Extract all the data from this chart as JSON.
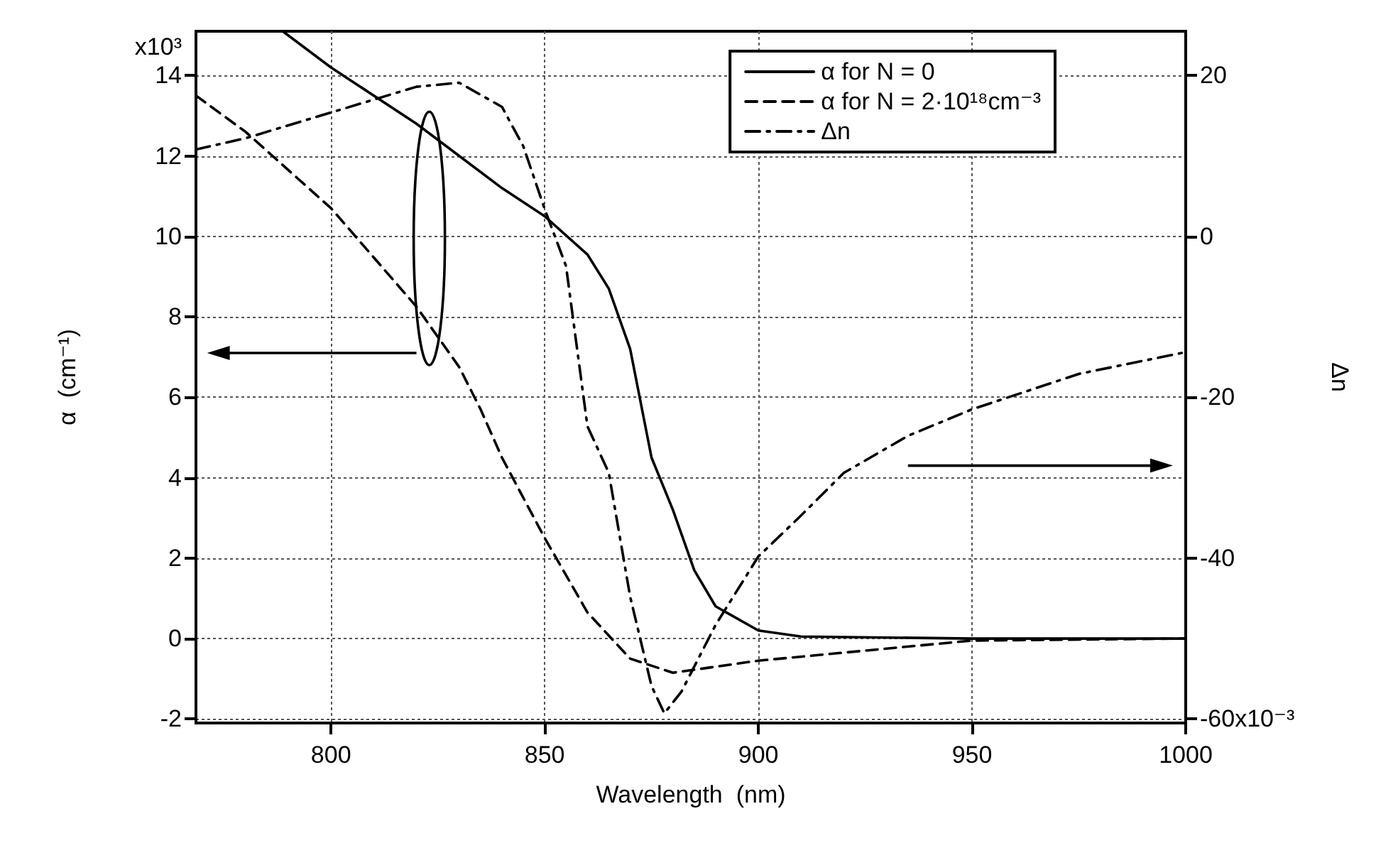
{
  "chart_data": {
    "type": "line",
    "xlabel": "Wavelength  (nm)",
    "ylabel": "α  (cm⁻¹)",
    "y2label": "Δn",
    "xlim": [
      768.4,
      1000
    ],
    "xticks": [
      800,
      850,
      900,
      950,
      1000
    ],
    "ylim": [
      -2.1,
      15.1
    ],
    "yticks": [
      -2,
      0,
      2,
      4,
      6,
      8,
      10,
      12,
      14
    ],
    "annotations": [
      "x10³",
      "x10⁻³"
    ],
    "y2lim": [
      -60.5,
      25.5
    ],
    "y2ticks": [
      -60,
      -40,
      -20,
      0,
      20
    ],
    "grid": true,
    "legend": "top right",
    "marker": "none",
    "series": [
      {
        "name": "α for N = 0",
        "color": "#000000",
        "line_style": "solid",
        "x": [
          788.7,
          800,
          820,
          840,
          850,
          860,
          865,
          870,
          875,
          880,
          885,
          890,
          900,
          910,
          950,
          1000
        ],
        "values": [
          15.1,
          14.2,
          12.8,
          11.2,
          10.5,
          9.55,
          8.7,
          7.2,
          4.5,
          3.2,
          1.7,
          0.8,
          0.2,
          0.05,
          0,
          0
        ]
      },
      {
        "name": "α for N = 2·10¹⁸cm⁻³",
        "color": "#000000",
        "line_style": "dashed",
        "x": [
          768.4,
          780,
          800,
          820,
          830,
          835,
          840,
          850,
          860,
          870,
          880,
          900,
          925,
          950,
          1000
        ],
        "values": [
          13.5,
          12.6,
          10.7,
          8.25,
          6.75,
          5.7,
          4.5,
          2.5,
          0.65,
          -0.5,
          -0.85,
          -0.55,
          -0.3,
          -0.05,
          0
        ]
      },
      {
        "name": "Δn",
        "color": "#000000",
        "line_style": "dashdot",
        "axis": "y2",
        "x": [
          768.4,
          780,
          800,
          820,
          830,
          840,
          845,
          850,
          855,
          860,
          865,
          870,
          875,
          878,
          882,
          890,
          900,
          910,
          920,
          935,
          950,
          975,
          1000
        ],
        "values": [
          10.8,
          12.2,
          15.4,
          18.6,
          19.1,
          16.1,
          11.2,
          3.4,
          -3.7,
          -23.6,
          -29.4,
          -44.8,
          -55.9,
          -59.3,
          -56.6,
          -48.3,
          -39.8,
          -34.7,
          -29.4,
          -24.8,
          -21.5,
          -17.1,
          -14.4
        ]
      }
    ]
  }
}
